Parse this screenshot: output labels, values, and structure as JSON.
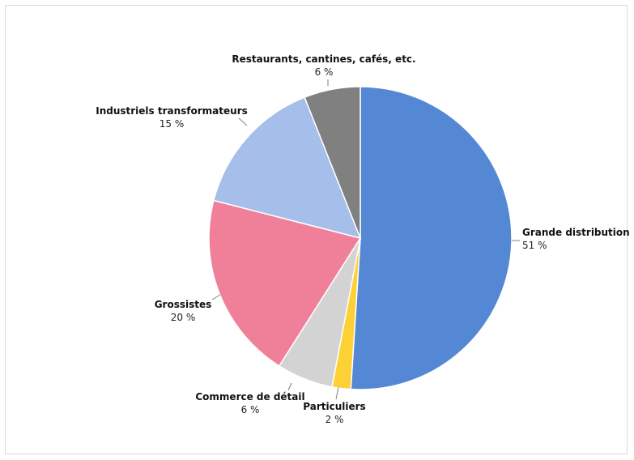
{
  "chart_data": {
    "type": "pie",
    "title": "",
    "slices": [
      {
        "label": "Grande distribution",
        "value_label": "51 %",
        "value": 51,
        "color": "#5588d4"
      },
      {
        "label": "Particuliers",
        "value_label": "2 %",
        "value": 2,
        "color": "#fdd036"
      },
      {
        "label": "Commerce de détail",
        "value_label": "6 %",
        "value": 6,
        "color": "#d3d3d3"
      },
      {
        "label": "Grossistes",
        "value_label": "20 %",
        "value": 20,
        "color": "#f0809a"
      },
      {
        "label": "Industriels transformateurs",
        "value_label": "15 %",
        "value": 15,
        "color": "#a5beea"
      },
      {
        "label": "Restaurants, cantines, cafés, etc.",
        "value_label": "6 %",
        "value": 6,
        "color": "#808080"
      }
    ]
  }
}
